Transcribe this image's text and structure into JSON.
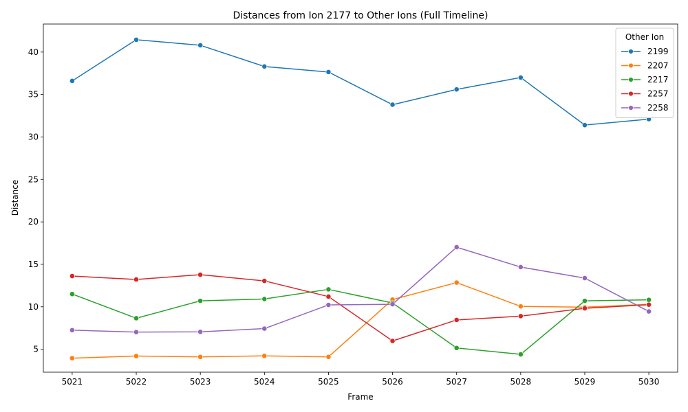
{
  "chart_data": {
    "type": "line",
    "title": "Distances from Ion 2177 to Other Ions (Full Timeline)",
    "xlabel": "Frame",
    "ylabel": "Distance",
    "x": [
      5021,
      5022,
      5023,
      5024,
      5025,
      5026,
      5027,
      5028,
      5029,
      5030
    ],
    "xlim": [
      5020.55,
      5030.45
    ],
    "ylim": [
      2.3,
      43.3
    ],
    "yticks": [
      5,
      10,
      15,
      20,
      25,
      30,
      35,
      40
    ],
    "grid": false,
    "legend": {
      "title": "Other Ion",
      "placement": "top-right"
    },
    "series": [
      {
        "name": "2199",
        "color": "#1f77b4",
        "values": [
          36.6,
          41.45,
          40.8,
          38.3,
          37.65,
          33.8,
          35.6,
          37.0,
          31.4,
          32.1
        ]
      },
      {
        "name": "2207",
        "color": "#ff7f0e",
        "values": [
          3.95,
          4.2,
          4.1,
          4.22,
          4.1,
          10.85,
          12.85,
          10.05,
          9.95,
          10.3
        ]
      },
      {
        "name": "2217",
        "color": "#2ca02c",
        "values": [
          11.5,
          8.65,
          10.7,
          10.92,
          12.05,
          10.45,
          5.15,
          4.4,
          10.7,
          10.82
        ]
      },
      {
        "name": "2257",
        "color": "#d62728",
        "values": [
          13.62,
          13.22,
          13.78,
          13.05,
          11.2,
          5.98,
          8.45,
          8.9,
          9.82,
          10.25
        ]
      },
      {
        "name": "2258",
        "color": "#9467bd",
        "values": [
          7.25,
          7.02,
          7.05,
          7.43,
          10.22,
          10.3,
          17.02,
          14.68,
          13.38,
          9.45
        ]
      }
    ]
  }
}
